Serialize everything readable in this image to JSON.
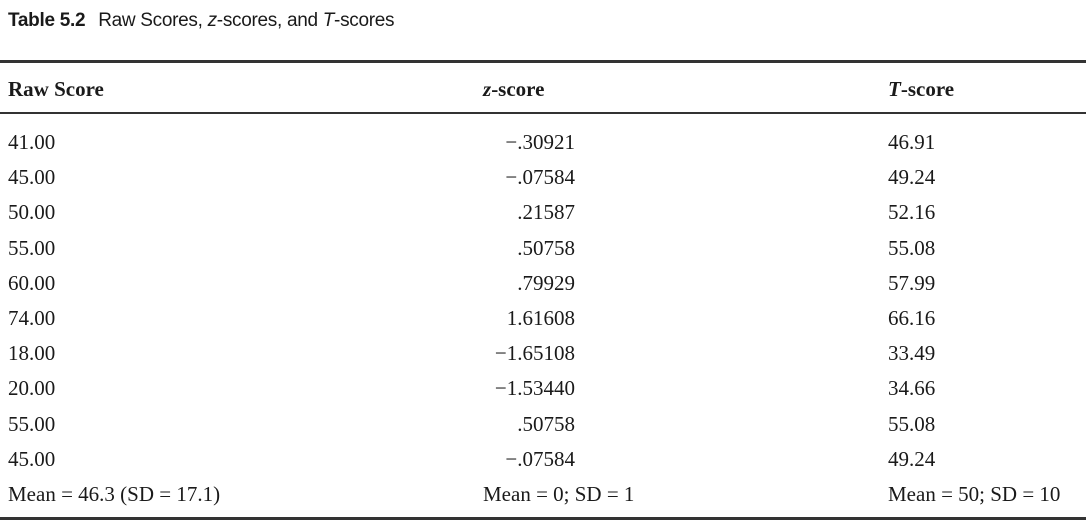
{
  "caption": {
    "label": "Table 5.2",
    "title_parts": [
      {
        "text": "Raw Scores, "
      },
      {
        "text": "z",
        "italic": true
      },
      {
        "text": "-scores, and "
      },
      {
        "text": "T",
        "italic": true
      },
      {
        "text": "-scores"
      }
    ]
  },
  "table": {
    "headers": [
      [
        {
          "text": "Raw Score"
        }
      ],
      [
        {
          "text": "z",
          "italic": true
        },
        {
          "text": "-score"
        }
      ],
      [
        {
          "text": "T",
          "italic": true
        },
        {
          "text": "-score"
        }
      ]
    ],
    "rows": [
      [
        "41.00",
        "−.30921",
        "46.91"
      ],
      [
        "45.00",
        "−.07584",
        "49.24"
      ],
      [
        "50.00",
        ".21587",
        "52.16"
      ],
      [
        "55.00",
        ".50758",
        "55.08"
      ],
      [
        "60.00",
        ".79929",
        "57.99"
      ],
      [
        "74.00",
        "1.61608",
        "66.16"
      ],
      [
        "18.00",
        "−1.65108",
        "33.49"
      ],
      [
        "20.00",
        "−1.53440",
        "34.66"
      ],
      [
        "55.00",
        ".50758",
        "55.08"
      ],
      [
        "45.00",
        "−.07584",
        "49.24"
      ]
    ],
    "footer": [
      "Mean = 46.3 (SD = 17.1)",
      "Mean = 0; SD = 1",
      "Mean = 50; SD = 10"
    ]
  }
}
